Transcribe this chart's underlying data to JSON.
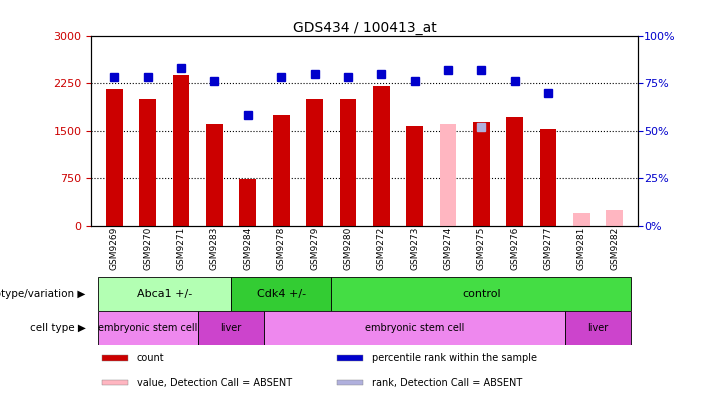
{
  "title": "GDS434 / 100413_at",
  "samples": [
    "GSM9269",
    "GSM9270",
    "GSM9271",
    "GSM9283",
    "GSM9284",
    "GSM9278",
    "GSM9279",
    "GSM9280",
    "GSM9272",
    "GSM9273",
    "GSM9274",
    "GSM9275",
    "GSM9276",
    "GSM9277",
    "GSM9281",
    "GSM9282"
  ],
  "counts": [
    2150,
    2000,
    2380,
    1600,
    730,
    1750,
    2000,
    2000,
    2200,
    1580,
    null,
    1640,
    1720,
    1520,
    null,
    null
  ],
  "ranks": [
    78,
    78,
    83,
    76,
    58,
    78,
    80,
    78,
    80,
    76,
    82,
    82,
    76,
    70,
    null,
    null
  ],
  "absent_counts": [
    null,
    null,
    null,
    null,
    null,
    null,
    null,
    null,
    null,
    null,
    1600,
    null,
    null,
    null,
    200,
    250
  ],
  "absent_ranks": [
    null,
    null,
    null,
    null,
    null,
    null,
    null,
    null,
    null,
    null,
    null,
    52,
    null,
    null,
    null,
    null
  ],
  "bar_color": "#cc0000",
  "rank_color": "#0000cc",
  "absent_bar_color": "#ffb6c1",
  "absent_rank_color": "#b0b0dd",
  "ylim_left": [
    0,
    3000
  ],
  "ylim_right": [
    0,
    100
  ],
  "yticks_left": [
    0,
    750,
    1500,
    2250,
    3000
  ],
  "yticks_right": [
    0,
    25,
    50,
    75,
    100
  ],
  "genotype_groups": [
    {
      "label": "Abca1 +/-",
      "start": 0,
      "end": 4,
      "color": "#b3ffb3"
    },
    {
      "label": "Cdk4 +/-",
      "start": 4,
      "end": 7,
      "color": "#33cc33"
    },
    {
      "label": "control",
      "start": 7,
      "end": 16,
      "color": "#44dd44"
    }
  ],
  "celltype_groups": [
    {
      "label": "embryonic stem cell",
      "start": 0,
      "end": 3,
      "color": "#ee88ee"
    },
    {
      "label": "liver",
      "start": 3,
      "end": 5,
      "color": "#cc44cc"
    },
    {
      "label": "embryonic stem cell",
      "start": 5,
      "end": 14,
      "color": "#ee88ee"
    },
    {
      "label": "liver",
      "start": 14,
      "end": 16,
      "color": "#cc44cc"
    }
  ],
  "legend_items": [
    {
      "label": "count",
      "color": "#cc0000"
    },
    {
      "label": "percentile rank within the sample",
      "color": "#0000cc"
    },
    {
      "label": "value, Detection Call = ABSENT",
      "color": "#ffb6c1"
    },
    {
      "label": "rank, Detection Call = ABSENT",
      "color": "#b0b0dd"
    }
  ],
  "bar_width": 0.5,
  "rank_marker_size": 6,
  "background_color": "#ffffff",
  "left_label_color": "#cc0000",
  "right_label_color": "#0000cc",
  "plot_bg": "#ffffff"
}
